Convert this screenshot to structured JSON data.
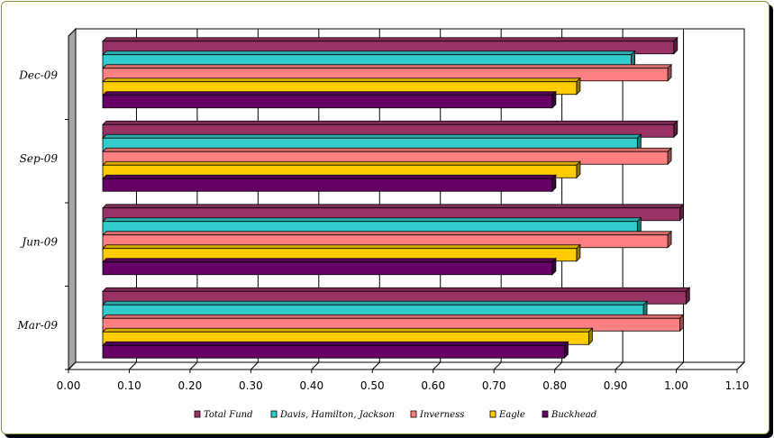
{
  "chart_data": {
    "type": "bar",
    "orientation": "horizontal",
    "style": "3d",
    "categories": [
      "Mar-09",
      "Jun-09",
      "Sep-09",
      "Dec-09"
    ],
    "series": [
      {
        "name": "Total Fund",
        "color": "#993366",
        "values": [
          1.01,
          1.0,
          0.99,
          0.99
        ]
      },
      {
        "name": "Davis, Hamilton, Jackson",
        "color": "#33CCCC",
        "values": [
          0.94,
          0.93,
          0.93,
          0.92
        ]
      },
      {
        "name": "Inverness",
        "color": "#FF8080",
        "values": [
          1.0,
          0.98,
          0.98,
          0.98
        ]
      },
      {
        "name": "Eagle",
        "color": "#FFCC00",
        "values": [
          0.85,
          0.83,
          0.83,
          0.83
        ]
      },
      {
        "name": "Buckhead",
        "color": "#660066",
        "values": [
          0.81,
          0.79,
          0.79,
          0.79
        ]
      }
    ],
    "xlim": [
      0,
      1.1
    ],
    "x_ticks": [
      "0.00",
      "0.10",
      "0.20",
      "0.30",
      "0.40",
      "0.50",
      "0.60",
      "0.70",
      "0.80",
      "0.90",
      "1.00",
      "1.10"
    ],
    "grid": "vertical",
    "legend_position": "bottom",
    "title": "",
    "xlabel": "",
    "ylabel": ""
  }
}
